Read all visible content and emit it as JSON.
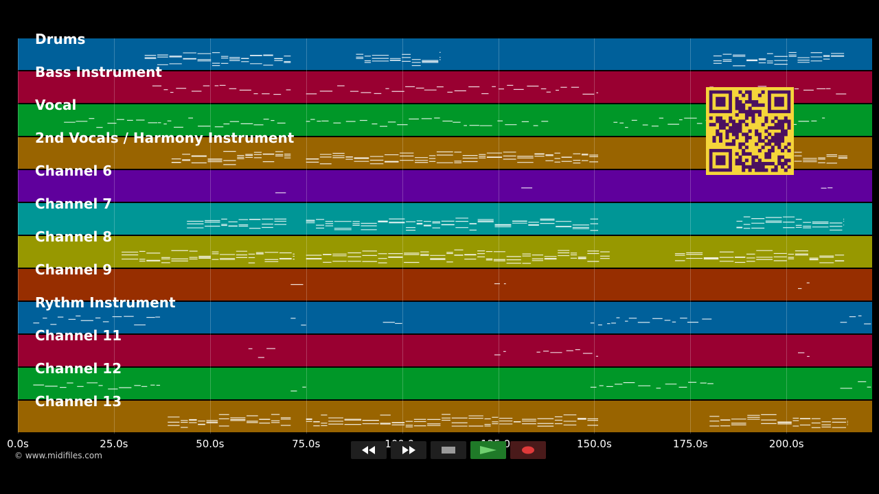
{
  "tracks": [
    {
      "name": "Drums",
      "color": "#00609a"
    },
    {
      "name": "Bass Instrument",
      "color": "#990031"
    },
    {
      "name": "Vocal",
      "color": "#009728"
    },
    {
      "name": "2nd Vocals / Harmony Instrument",
      "color": "#996400"
    },
    {
      "name": "Channel 6",
      "color": "#5f009c"
    },
    {
      "name": "Channel 7",
      "color": "#009696"
    },
    {
      "name": "Channel 8",
      "color": "#979800"
    },
    {
      "name": "Channel 9",
      "color": "#972e00"
    },
    {
      "name": "Rythm Instrument",
      "color": "#00609a"
    },
    {
      "name": "Channel 11",
      "color": "#990031"
    },
    {
      "name": "Channel 12",
      "color": "#009728"
    },
    {
      "name": "Channel 13",
      "color": "#996400"
    }
  ],
  "timeline": {
    "ticks": [
      "0.0s",
      "25.0s",
      "50.0s",
      "75.0s",
      "100.0s",
      "125.0s",
      "150.0s",
      "175.0s",
      "200.0s"
    ],
    "tick_values": [
      0,
      25,
      50,
      75,
      100,
      125,
      150,
      175,
      200
    ],
    "max_seconds": 222
  },
  "transport": {
    "rewind_icon": "rewind-icon",
    "forward_icon": "fast-forward-icon",
    "stop_icon": "stop-icon",
    "play_icon": "play-icon",
    "record_icon": "record-icon",
    "play_color": "#6fd06f",
    "record_color": "#e03a3a"
  },
  "copyright": "© www.midifiles.com",
  "qr_color": "#4a1060",
  "qr_background": "#f5d53a"
}
